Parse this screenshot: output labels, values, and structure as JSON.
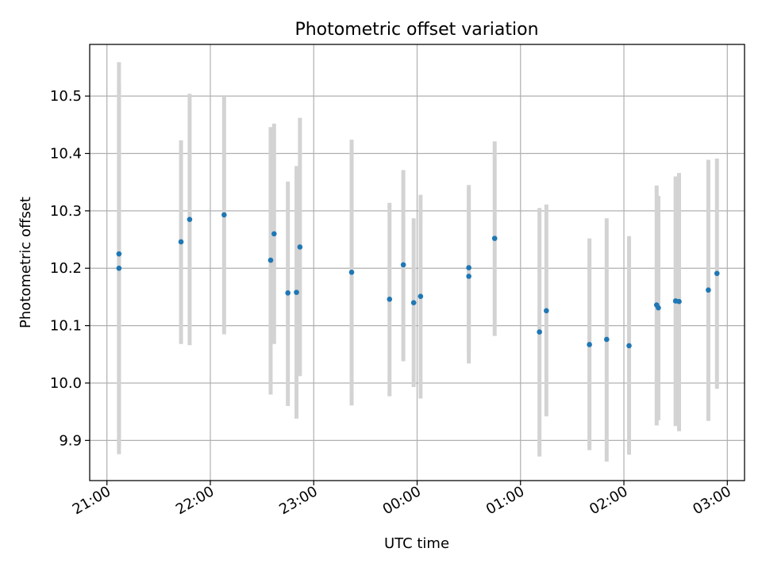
{
  "chart_data": {
    "type": "scatter",
    "title": "Photometric offset variation",
    "xlabel": "UTC time",
    "ylabel": "Photometric offset",
    "grid": true,
    "legend": "none",
    "x_axis": "time",
    "xlim": [
      "20:50",
      "03:10"
    ],
    "ylim": [
      9.83,
      10.59
    ],
    "xticks": [
      "21:00",
      "22:00",
      "23:00",
      "00:00",
      "01:00",
      "02:00",
      "03:00"
    ],
    "yticks": [
      "9.9",
      "10.0",
      "10.1",
      "10.2",
      "10.3",
      "10.4",
      "10.5"
    ],
    "marker_color": "#1f77b4",
    "errorbar_color": "#d3d3d3",
    "series": [
      {
        "points": [
          {
            "x": "21:07",
            "y": 10.2,
            "ylo": 9.876,
            "yhi": 10.521
          },
          {
            "x": "21:07",
            "y": 10.225,
            "ylo": 9.89,
            "yhi": 10.559
          },
          {
            "x": "21:43",
            "y": 10.246,
            "ylo": 10.068,
            "yhi": 10.423
          },
          {
            "x": "21:48",
            "y": 10.285,
            "ylo": 10.066,
            "yhi": 10.504
          },
          {
            "x": "22:08",
            "y": 10.293,
            "ylo": 10.085,
            "yhi": 10.5
          },
          {
            "x": "22:35",
            "y": 10.214,
            "ylo": 9.98,
            "yhi": 10.446
          },
          {
            "x": "22:37",
            "y": 10.26,
            "ylo": 10.068,
            "yhi": 10.452
          },
          {
            "x": "22:45",
            "y": 10.157,
            "ylo": 9.96,
            "yhi": 10.351
          },
          {
            "x": "22:50",
            "y": 10.158,
            "ylo": 9.938,
            "yhi": 10.378
          },
          {
            "x": "22:52",
            "y": 10.237,
            "ylo": 10.012,
            "yhi": 10.462
          },
          {
            "x": "23:22",
            "y": 10.193,
            "ylo": 9.961,
            "yhi": 10.424
          },
          {
            "x": "23:44",
            "y": 10.146,
            "ylo": 9.977,
            "yhi": 10.314
          },
          {
            "x": "23:52",
            "y": 10.206,
            "ylo": 10.038,
            "yhi": 10.371
          },
          {
            "x": "23:58",
            "y": 10.14,
            "ylo": 9.993,
            "yhi": 10.287
          },
          {
            "x": "00:02",
            "y": 10.151,
            "ylo": 9.973,
            "yhi": 10.328
          },
          {
            "x": "00:30",
            "y": 10.201,
            "ylo": 10.056,
            "yhi": 10.345
          },
          {
            "x": "00:30",
            "y": 10.186,
            "ylo": 10.034,
            "yhi": 10.338
          },
          {
            "x": "00:45",
            "y": 10.252,
            "ylo": 10.082,
            "yhi": 10.421
          },
          {
            "x": "01:11",
            "y": 10.089,
            "ylo": 9.872,
            "yhi": 10.305
          },
          {
            "x": "01:15",
            "y": 10.126,
            "ylo": 9.942,
            "yhi": 10.311
          },
          {
            "x": "01:40",
            "y": 10.067,
            "ylo": 9.883,
            "yhi": 10.252
          },
          {
            "x": "01:50",
            "y": 10.076,
            "ylo": 9.863,
            "yhi": 10.287
          },
          {
            "x": "02:03",
            "y": 10.065,
            "ylo": 9.875,
            "yhi": 10.256
          },
          {
            "x": "02:19",
            "y": 10.136,
            "ylo": 9.926,
            "yhi": 10.344
          },
          {
            "x": "02:20",
            "y": 10.131,
            "ylo": 9.935,
            "yhi": 10.326
          },
          {
            "x": "02:30",
            "y": 10.143,
            "ylo": 9.925,
            "yhi": 10.36
          },
          {
            "x": "02:32",
            "y": 10.142,
            "ylo": 9.916,
            "yhi": 10.366
          },
          {
            "x": "02:49",
            "y": 10.162,
            "ylo": 9.934,
            "yhi": 10.389
          },
          {
            "x": "02:54",
            "y": 10.191,
            "ylo": 9.99,
            "yhi": 10.391
          }
        ]
      }
    ]
  }
}
